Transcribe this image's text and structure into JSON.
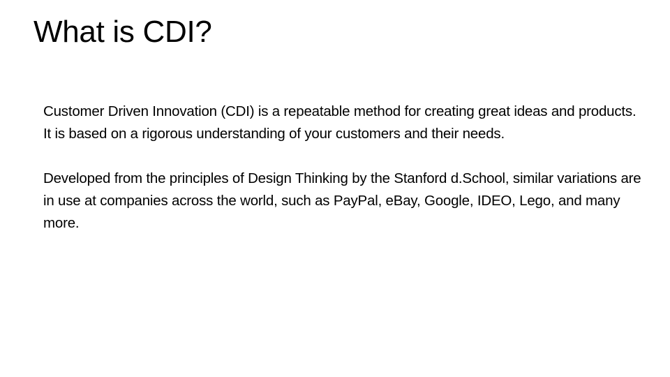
{
  "slide": {
    "title": "What is CDI?",
    "paragraphs": [
      "Customer Driven Innovation (CDI) is a repeatable method for creating great ideas and products. It is based on a rigorous understanding of your customers and their needs.",
      "Developed from the principles of Design Thinking by the Stanford d.School, similar variations are in use at companies across the world, such as PayPal, eBay, Google, IDEO, Lego, and many more."
    ]
  }
}
